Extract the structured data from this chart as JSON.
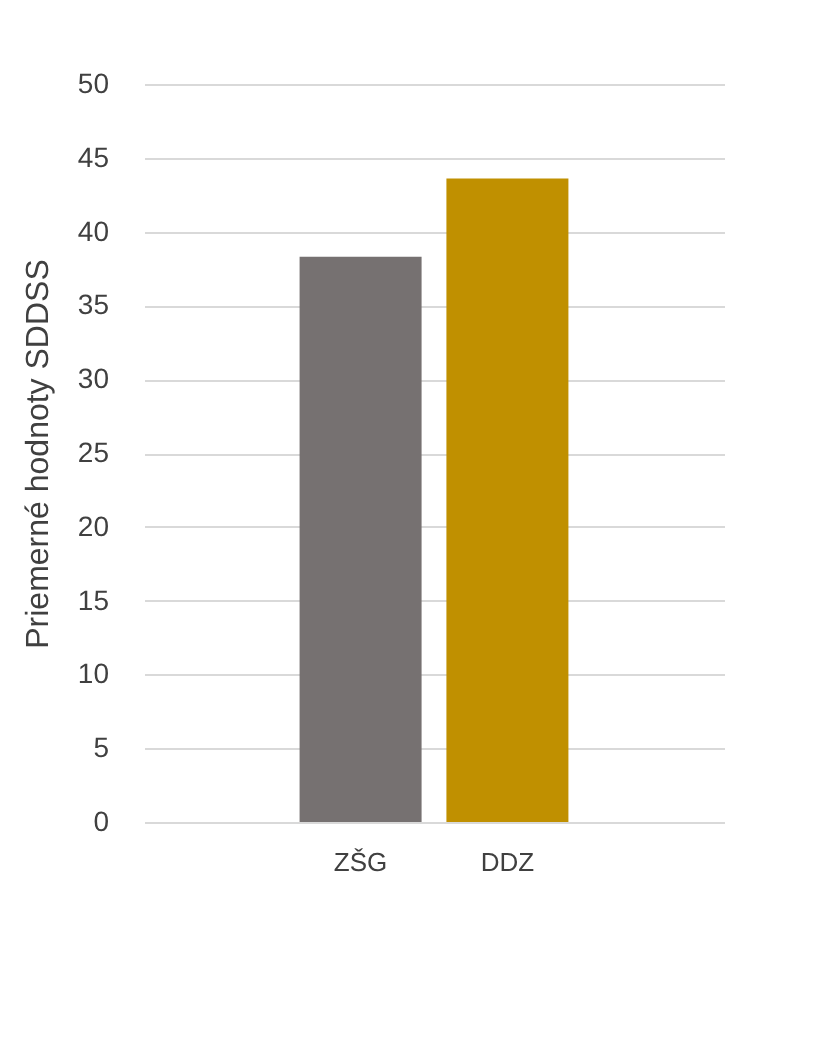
{
  "chart_data": {
    "type": "bar",
    "ylabel": "Priemerné hodnoty SDDSS",
    "categories": [
      "ZŠG",
      "DDZ"
    ],
    "values": [
      38.3,
      43.6
    ],
    "colors": [
      "#767171",
      "#c09000"
    ],
    "ylim": [
      0,
      50
    ],
    "yticks": [
      0,
      5,
      10,
      15,
      20,
      25,
      30,
      35,
      40,
      45,
      50
    ],
    "grid": "y"
  }
}
